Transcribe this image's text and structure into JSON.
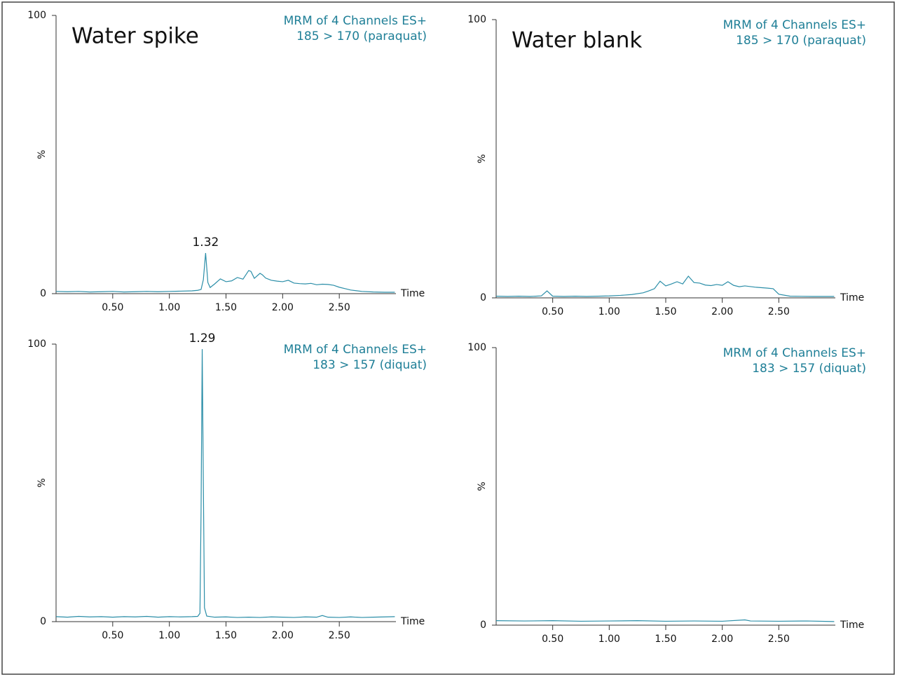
{
  "chart_data": [
    {
      "type": "line",
      "title": "Water spike",
      "channel_lines": [
        "MRM of 4 Channels ES+",
        "185 > 170 (paraquat)"
      ],
      "xlabel": "Time",
      "ylabel": "%",
      "xlim": [
        0,
        3.0
      ],
      "ylim": [
        0,
        100
      ],
      "yticks": [
        0,
        100
      ],
      "xticks": [
        {
          "value": 0.5,
          "label": "0.50"
        },
        {
          "value": 1.0,
          "label": "1.00"
        },
        {
          "value": 1.5,
          "label": "1.50"
        },
        {
          "value": 2.0,
          "label": "2.00"
        },
        {
          "value": 2.5,
          "label": "2.50"
        }
      ],
      "peak_labels": [
        1.32
      ],
      "x": [
        0,
        0.1,
        0.2,
        0.3,
        0.4,
        0.5,
        0.6,
        0.7,
        0.8,
        0.9,
        1.0,
        1.1,
        1.2,
        1.25,
        1.28,
        1.3,
        1.32,
        1.34,
        1.36,
        1.4,
        1.45,
        1.5,
        1.55,
        1.6,
        1.65,
        1.7,
        1.72,
        1.75,
        1.8,
        1.82,
        1.85,
        1.9,
        1.95,
        2.0,
        2.05,
        2.1,
        2.15,
        2.2,
        2.25,
        2.3,
        2.35,
        2.4,
        2.45,
        2.5,
        2.55,
        2.6,
        2.7,
        2.8,
        2.9,
        2.99
      ],
      "series": [
        {
          "color": "#2b8ea8",
          "values": [
            0.8,
            0.7,
            0.8,
            0.6,
            0.7,
            0.8,
            0.6,
            0.7,
            0.8,
            0.7,
            0.8,
            0.9,
            1.0,
            1.2,
            1.5,
            5,
            14.6,
            4,
            2.2,
            3.5,
            5.3,
            4.3,
            4.6,
            5.8,
            5.2,
            8.3,
            8.0,
            5.5,
            7.3,
            6.8,
            5.6,
            4.8,
            4.5,
            4.3,
            4.8,
            3.8,
            3.6,
            3.5,
            3.7,
            3.2,
            3.4,
            3.3,
            3.0,
            2.3,
            1.8,
            1.3,
            0.8,
            0.6,
            0.5,
            0.5
          ]
        }
      ]
    },
    {
      "type": "line",
      "title": "Water blank",
      "channel_lines": [
        "MRM of 4 Channels ES+",
        "185 > 170 (paraquat)"
      ],
      "xlabel": "Time",
      "ylabel": "%",
      "xlim": [
        0,
        3.0
      ],
      "ylim": [
        0,
        100
      ],
      "yticks": [
        0,
        100
      ],
      "xticks": [
        {
          "value": 0.5,
          "label": "0.50"
        },
        {
          "value": 1.0,
          "label": "1.00"
        },
        {
          "value": 1.5,
          "label": "1.50"
        },
        {
          "value": 2.0,
          "label": "2.00"
        },
        {
          "value": 2.5,
          "label": "2.50"
        }
      ],
      "x": [
        0,
        0.1,
        0.2,
        0.3,
        0.4,
        0.45,
        0.5,
        0.6,
        0.7,
        0.8,
        0.9,
        1.0,
        1.1,
        1.2,
        1.3,
        1.35,
        1.4,
        1.45,
        1.5,
        1.55,
        1.6,
        1.65,
        1.7,
        1.75,
        1.8,
        1.85,
        1.9,
        1.95,
        2.0,
        2.05,
        2.1,
        2.15,
        2.2,
        2.3,
        2.4,
        2.45,
        2.5,
        2.6,
        2.8,
        2.99
      ],
      "series": [
        {
          "color": "#2b8ea8",
          "values": [
            0.6,
            0.5,
            0.6,
            0.5,
            0.7,
            2.5,
            0.6,
            0.5,
            0.6,
            0.5,
            0.6,
            0.7,
            0.9,
            1.2,
            1.8,
            2.5,
            3.3,
            6.0,
            4.3,
            5.0,
            5.8,
            5.0,
            7.8,
            5.5,
            5.3,
            4.6,
            4.4,
            4.8,
            4.5,
            5.8,
            4.5,
            4.0,
            4.3,
            3.8,
            3.5,
            3.3,
            1.3,
            0.6,
            0.5,
            0.5
          ]
        }
      ]
    },
    {
      "type": "line",
      "channel_lines": [
        "MRM of 4 Channels ES+",
        "183 > 157 (diquat)"
      ],
      "xlabel": "Time",
      "ylabel": "%",
      "xlim": [
        0,
        3.0
      ],
      "ylim": [
        0,
        100
      ],
      "yticks": [
        0,
        100
      ],
      "xticks": [
        {
          "value": 0.5,
          "label": "0.50"
        },
        {
          "value": 1.0,
          "label": "1.00"
        },
        {
          "value": 1.5,
          "label": "1.50"
        },
        {
          "value": 2.0,
          "label": "2.00"
        },
        {
          "value": 2.5,
          "label": "2.50"
        }
      ],
      "peak_labels": [
        1.29
      ],
      "x": [
        0,
        0.1,
        0.2,
        0.3,
        0.4,
        0.5,
        0.6,
        0.7,
        0.8,
        0.9,
        1.0,
        1.1,
        1.2,
        1.25,
        1.27,
        1.28,
        1.29,
        1.3,
        1.31,
        1.33,
        1.4,
        1.5,
        1.6,
        1.7,
        1.8,
        1.9,
        2.0,
        2.1,
        2.2,
        2.3,
        2.35,
        2.4,
        2.5,
        2.6,
        2.7,
        2.8,
        2.9,
        2.99
      ],
      "series": [
        {
          "color": "#2b8ea8",
          "values": [
            1.8,
            1.6,
            1.9,
            1.7,
            1.8,
            1.6,
            1.8,
            1.7,
            1.9,
            1.6,
            1.8,
            1.7,
            1.8,
            1.9,
            3,
            40,
            98.2,
            50,
            5,
            2.0,
            1.6,
            1.7,
            1.5,
            1.6,
            1.5,
            1.7,
            1.6,
            1.5,
            1.7,
            1.6,
            2.2,
            1.6,
            1.5,
            1.7,
            1.5,
            1.6,
            1.7,
            1.8
          ]
        }
      ]
    },
    {
      "type": "line",
      "channel_lines": [
        "MRM of 4 Channels ES+",
        "183 > 157 (diquat)"
      ],
      "xlabel": "Time",
      "ylabel": "%",
      "xlim": [
        0,
        3.0
      ],
      "ylim": [
        0,
        100
      ],
      "yticks": [
        0,
        100
      ],
      "xticks": [
        {
          "value": 0.5,
          "label": "0.50"
        },
        {
          "value": 1.0,
          "label": "1.00"
        },
        {
          "value": 1.5,
          "label": "1.50"
        },
        {
          "value": 2.0,
          "label": "2.00"
        },
        {
          "value": 2.5,
          "label": "2.50"
        }
      ],
      "x": [
        0,
        0.25,
        0.5,
        0.75,
        1.0,
        1.25,
        1.5,
        1.75,
        2.0,
        2.2,
        2.25,
        2.5,
        2.75,
        2.99
      ],
      "series": [
        {
          "color": "#2b8ea8",
          "values": [
            1.6,
            1.5,
            1.6,
            1.4,
            1.5,
            1.6,
            1.4,
            1.5,
            1.4,
            1.9,
            1.5,
            1.4,
            1.5,
            1.3
          ]
        }
      ]
    }
  ]
}
